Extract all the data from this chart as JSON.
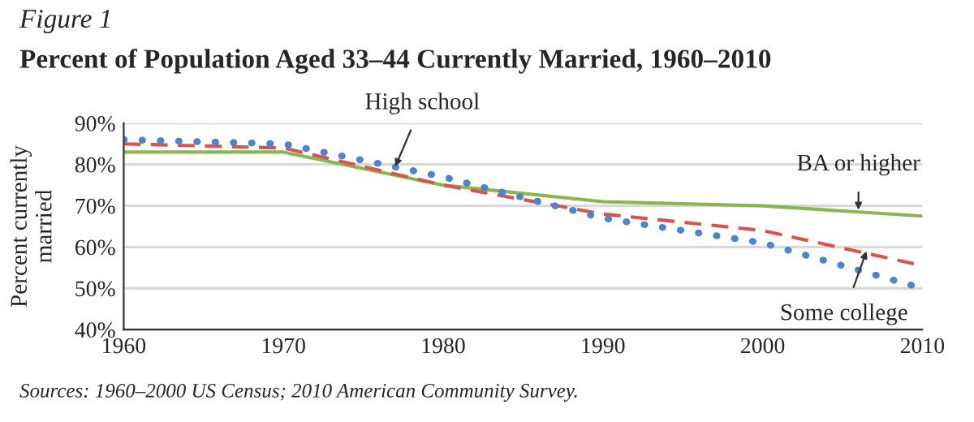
{
  "chart_data": {
    "type": "line",
    "title": "Figure 1",
    "subtitle": "Percent of Population Aged 33–44 Currently Married, 1960–2010",
    "ylabel": "Percent currently\nmarried",
    "x": [
      1960,
      1970,
      1980,
      1990,
      2000,
      2010
    ],
    "series": [
      {
        "color": "#8db54f",
        "line_style": "solid",
        "values": [
          83,
          83,
          75,
          71,
          70,
          67.5
        ]
      },
      {
        "color": "#d9534f",
        "line_style": "dashed",
        "values": [
          85,
          84,
          75,
          68,
          64,
          55.5
        ]
      },
      {
        "color": "#4a86d0",
        "line_style": "dotted",
        "values": [
          86,
          85,
          77,
          67,
          61,
          50
        ]
      }
    ],
    "xlim": [
      1960,
      2010
    ],
    "xticks": [
      1960,
      1970,
      1980,
      1990,
      2000,
      2010
    ],
    "ylim": [
      40,
      90
    ],
    "yticks": [
      {
        "value": 40,
        "label": "40%"
      },
      {
        "value": 50,
        "label": "50%"
      },
      {
        "value": 60,
        "label": "60%"
      },
      {
        "value": 70,
        "label": "70%"
      },
      {
        "value": 80,
        "label": "80%"
      },
      {
        "value": 90,
        "label": "90%"
      }
    ],
    "grid": "y",
    "legend": false,
    "annotations": [
      {
        "text": "High school",
        "x": 1977,
        "y": 79.5
      },
      {
        "text": "BA or higher",
        "x": 2006,
        "y": 69
      },
      {
        "text": "Some college",
        "x": 2006.5,
        "y": 59
      },
      "Sources: 1960–2000 US Census; 2010 American Community Survey."
    ]
  }
}
